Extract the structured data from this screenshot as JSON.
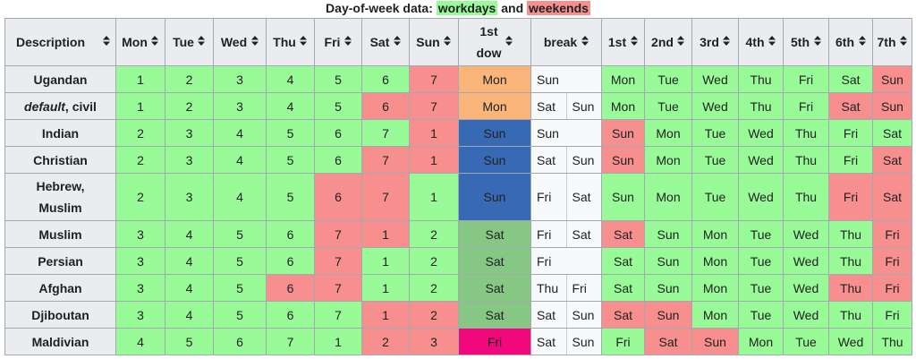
{
  "caption": {
    "prefix": "Day-of-week data: ",
    "work": "workdays",
    "mid": " and ",
    "week": "weekends"
  },
  "headers": [
    "Description",
    "Mon",
    "Tue",
    "Wed",
    "Thu",
    "Fri",
    "Sat",
    "Sun",
    "1st\ndow",
    "break",
    "1st",
    "2nd",
    "3rd",
    "4th",
    "5th",
    "6th",
    "7th"
  ],
  "sort_icon": "sort-updown-icon",
  "colors": {
    "workday": "#98fb98",
    "weekend": "#f88f8f",
    "dow_mon": "#fab67a",
    "dow_sun": "#3869b5",
    "dow_sat": "#86c784",
    "dow_fri": "#f0087c",
    "header": "#eaecf0"
  },
  "rows": [
    {
      "desc": "Ugandan",
      "num": [
        "1",
        "2",
        "3",
        "4",
        "5",
        "6",
        "7"
      ],
      "numc": [
        "g",
        "g",
        "g",
        "g",
        "g",
        "g",
        "r"
      ],
      "dow": "Mon",
      "dowc": "o",
      "brk": [
        "Sun"
      ],
      "days": [
        "Mon",
        "Tue",
        "Wed",
        "Thu",
        "Fri",
        "Sat",
        "Sun"
      ],
      "dayc": [
        "g",
        "g",
        "g",
        "g",
        "g",
        "g",
        "r"
      ]
    },
    {
      "desc_italic": "default",
      "desc_rest": ", civil",
      "num": [
        "1",
        "2",
        "3",
        "4",
        "5",
        "6",
        "7"
      ],
      "numc": [
        "g",
        "g",
        "g",
        "g",
        "g",
        "r",
        "r"
      ],
      "dow": "Mon",
      "dowc": "o",
      "brk": [
        "Sat",
        "Sun"
      ],
      "days": [
        "Mon",
        "Tue",
        "Wed",
        "Thu",
        "Fri",
        "Sat",
        "Sun"
      ],
      "dayc": [
        "g",
        "g",
        "g",
        "g",
        "g",
        "r",
        "r"
      ]
    },
    {
      "desc": "Indian",
      "num": [
        "2",
        "3",
        "4",
        "5",
        "6",
        "7",
        "1"
      ],
      "numc": [
        "g",
        "g",
        "g",
        "g",
        "g",
        "g",
        "r"
      ],
      "dow": "Sun",
      "dowc": "b",
      "brk": [
        "Sun"
      ],
      "days": [
        "Sun",
        "Mon",
        "Tue",
        "Wed",
        "Thu",
        "Fri",
        "Sat"
      ],
      "dayc": [
        "r",
        "g",
        "g",
        "g",
        "g",
        "g",
        "g"
      ]
    },
    {
      "desc": "Christian",
      "num": [
        "2",
        "3",
        "4",
        "5",
        "6",
        "7",
        "1"
      ],
      "numc": [
        "g",
        "g",
        "g",
        "g",
        "g",
        "r",
        "r"
      ],
      "dow": "Sun",
      "dowc": "b",
      "brk": [
        "Sat",
        "Sun"
      ],
      "days": [
        "Sun",
        "Mon",
        "Tue",
        "Wed",
        "Thu",
        "Fri",
        "Sat"
      ],
      "dayc": [
        "r",
        "g",
        "g",
        "g",
        "g",
        "g",
        "r"
      ]
    },
    {
      "desc": "Hebrew,\nMuslim",
      "tall": true,
      "num": [
        "2",
        "3",
        "4",
        "5",
        "6",
        "7",
        "1"
      ],
      "numc": [
        "g",
        "g",
        "g",
        "g",
        "r",
        "r",
        "g"
      ],
      "dow": "Sun",
      "dowc": "b",
      "brk": [
        "Fri",
        "Sat"
      ],
      "days": [
        "Sun",
        "Mon",
        "Tue",
        "Wed",
        "Thu",
        "Fri",
        "Sat"
      ],
      "dayc": [
        "g",
        "g",
        "g",
        "g",
        "g",
        "r",
        "r"
      ]
    },
    {
      "desc": "Muslim",
      "num": [
        "3",
        "4",
        "5",
        "6",
        "7",
        "1",
        "2"
      ],
      "numc": [
        "g",
        "g",
        "g",
        "g",
        "r",
        "r",
        "g"
      ],
      "dow": "Sat",
      "dowc": "dg",
      "brk": [
        "Fri",
        "Sat"
      ],
      "days": [
        "Sat",
        "Sun",
        "Mon",
        "Tue",
        "Wed",
        "Thu",
        "Fri"
      ],
      "dayc": [
        "r",
        "g",
        "g",
        "g",
        "g",
        "g",
        "r"
      ]
    },
    {
      "desc": "Persian",
      "num": [
        "3",
        "4",
        "5",
        "6",
        "7",
        "1",
        "2"
      ],
      "numc": [
        "g",
        "g",
        "g",
        "g",
        "r",
        "g",
        "g"
      ],
      "dow": "Sat",
      "dowc": "dg",
      "brk": [
        "Fri"
      ],
      "days": [
        "Sat",
        "Sun",
        "Mon",
        "Tue",
        "Wed",
        "Thu",
        "Fri"
      ],
      "dayc": [
        "g",
        "g",
        "g",
        "g",
        "g",
        "g",
        "r"
      ]
    },
    {
      "desc": "Afghan",
      "num": [
        "3",
        "4",
        "5",
        "6",
        "7",
        "1",
        "2"
      ],
      "numc": [
        "g",
        "g",
        "g",
        "r",
        "r",
        "g",
        "g"
      ],
      "dow": "Sat",
      "dowc": "dg",
      "brk": [
        "Thu",
        "Fri"
      ],
      "days": [
        "Sat",
        "Sun",
        "Mon",
        "Tue",
        "Wed",
        "Thu",
        "Fri"
      ],
      "dayc": [
        "g",
        "g",
        "g",
        "g",
        "g",
        "r",
        "r"
      ]
    },
    {
      "desc": "Djiboutan",
      "num": [
        "3",
        "4",
        "5",
        "6",
        "7",
        "1",
        "2"
      ],
      "numc": [
        "g",
        "g",
        "g",
        "g",
        "g",
        "r",
        "r"
      ],
      "dow": "Sat",
      "dowc": "dg",
      "brk": [
        "Sat",
        "Sun"
      ],
      "days": [
        "Sat",
        "Sun",
        "Mon",
        "Tue",
        "Wed",
        "Thu",
        "Fri"
      ],
      "dayc": [
        "r",
        "r",
        "g",
        "g",
        "g",
        "g",
        "g"
      ]
    },
    {
      "desc": "Maldivian",
      "num": [
        "4",
        "5",
        "6",
        "7",
        "1",
        "2",
        "3"
      ],
      "numc": [
        "g",
        "g",
        "g",
        "g",
        "g",
        "r",
        "r"
      ],
      "dow": "Fri",
      "dowc": "mg",
      "brk": [
        "Sat",
        "Sun"
      ],
      "days": [
        "Fri",
        "Sat",
        "Sun",
        "Mon",
        "Tue",
        "Wed",
        "Thu"
      ],
      "dayc": [
        "g",
        "r",
        "r",
        "g",
        "g",
        "g",
        "g"
      ]
    }
  ]
}
